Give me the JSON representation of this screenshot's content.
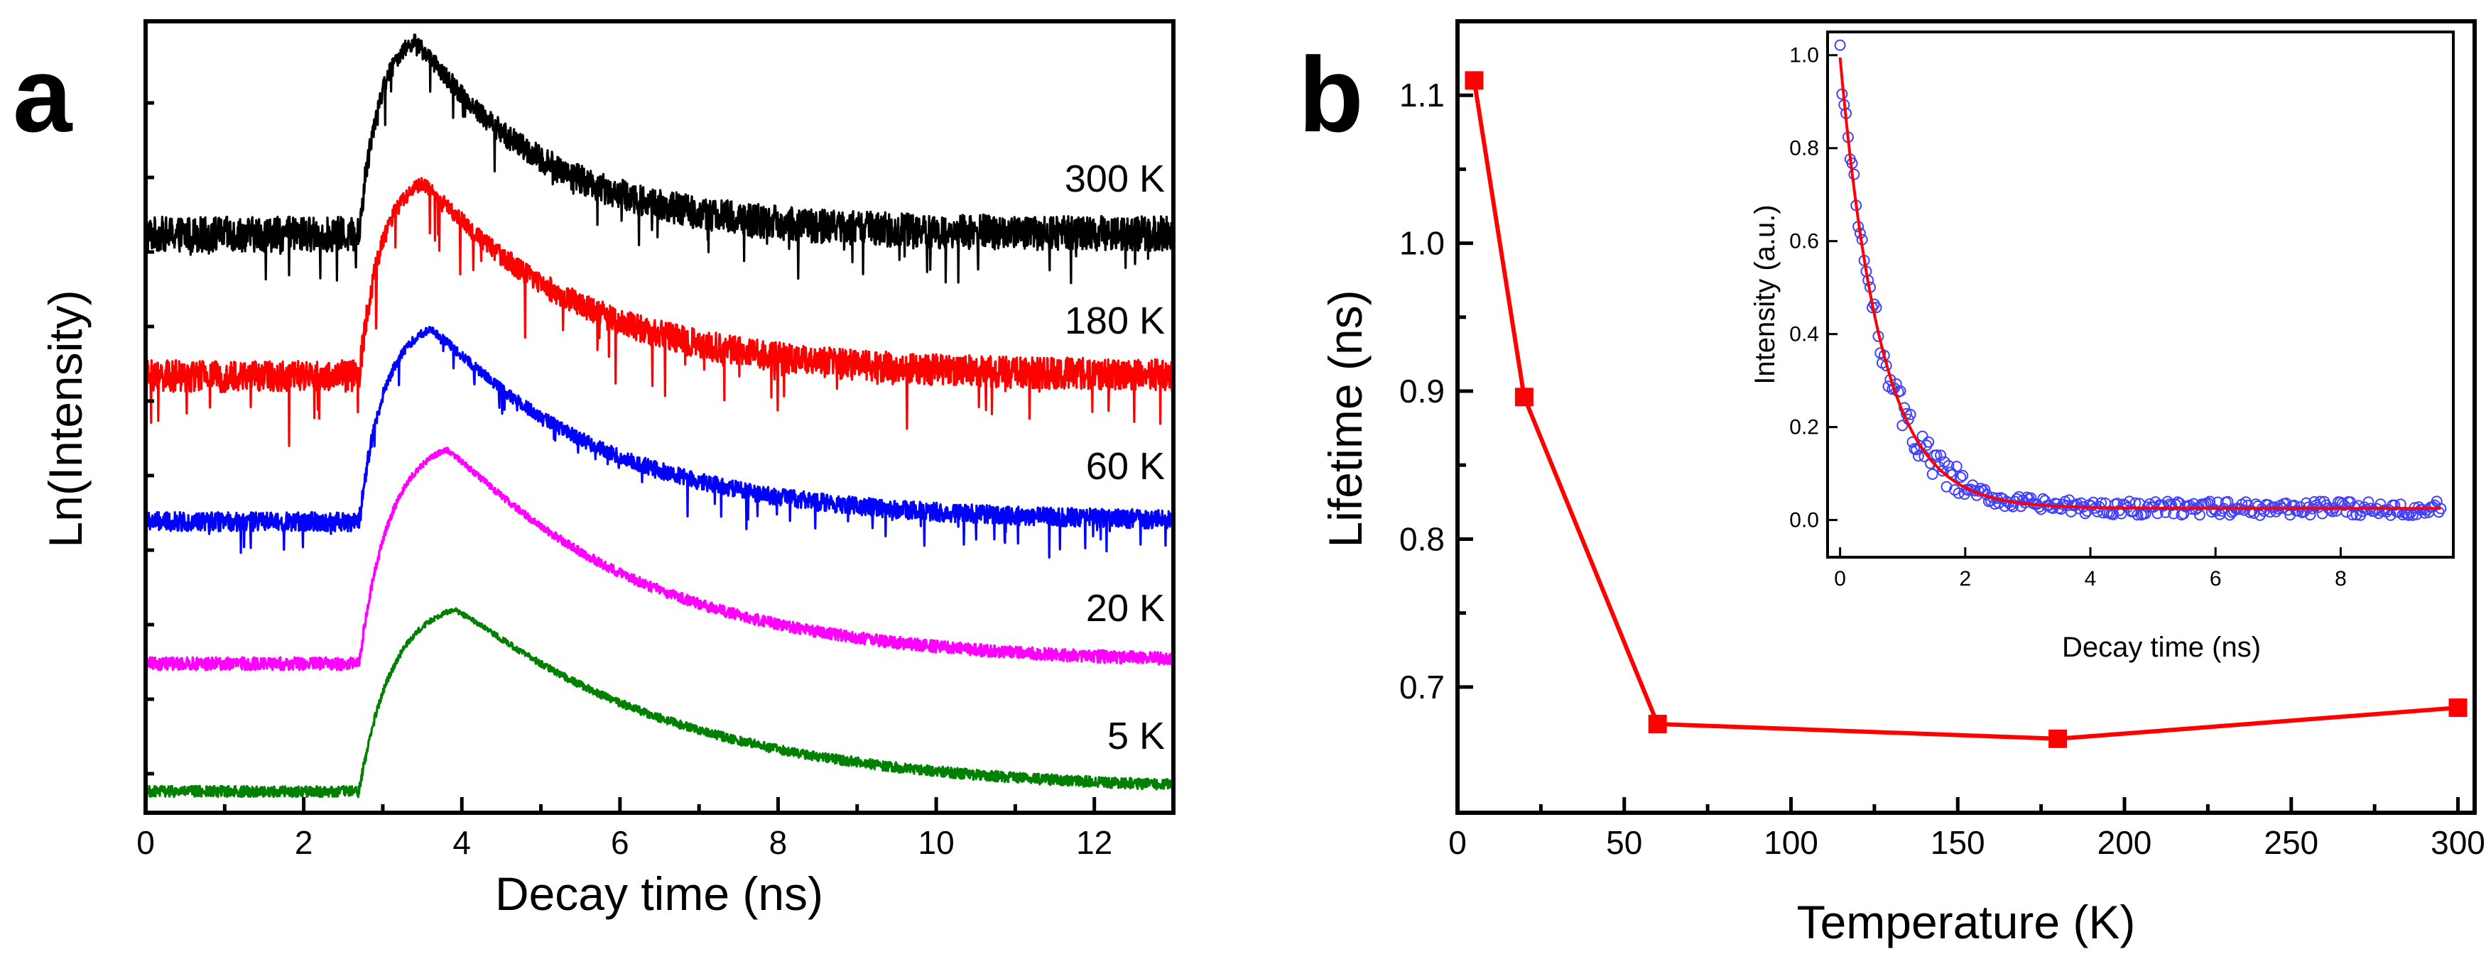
{
  "panels": {
    "a": {
      "letter": "a",
      "chart_data": {
        "type": "line",
        "title": "",
        "xlabel": "Decay time (ns)",
        "ylabel": "Ln(Intensity)",
        "xlim": [
          0,
          13
        ],
        "xticks": [
          "0",
          "2",
          "4",
          "6",
          "8",
          "10",
          "12"
        ],
        "y_ticks_labeled": false,
        "series": [
          {
            "name": "300 K",
            "label": "300 K",
            "color": "#000000",
            "baseline": 2.5,
            "peak_height": 0.9,
            "onset_ns": 2.7,
            "peak_ns": 3.4,
            "decay_tau_ns": 1.6,
            "noise": 0.22,
            "spikes": 0.55,
            "endlevel": 0.0
          },
          {
            "name": "180 K",
            "label": "180 K",
            "color": "#ff0000",
            "baseline": 2.5,
            "peak_height": 0.9,
            "onset_ns": 2.7,
            "peak_ns": 3.5,
            "decay_tau_ns": 1.9,
            "noise": 0.2,
            "spikes": 0.75,
            "endlevel": 0.0
          },
          {
            "name": "60 K",
            "label": "60 K",
            "color": "#0000ff",
            "baseline": 2.5,
            "peak_height": 0.9,
            "onset_ns": 2.7,
            "peak_ns": 3.6,
            "decay_tau_ns": 2.1,
            "noise": 0.12,
            "spikes": 0.42,
            "endlevel": 0.0
          },
          {
            "name": "20 K",
            "label": "20 K",
            "color": "#ff00ff",
            "baseline": 2.5,
            "peak_height": 1.0,
            "onset_ns": 2.7,
            "peak_ns": 3.8,
            "decay_tau_ns": 2.4,
            "noise": 0.08,
            "spikes": 0.0,
            "endlevel": 0.0
          },
          {
            "name": "5 K",
            "label": "5 K",
            "color": "#008000",
            "baseline": 2.5,
            "peak_height": 0.85,
            "onset_ns": 2.7,
            "peak_ns": 3.9,
            "decay_tau_ns": 2.7,
            "noise": 0.07,
            "spikes": 0.0,
            "endlevel": 0.0
          }
        ]
      }
    },
    "b": {
      "letter": "b",
      "chart_data": {
        "type": "line",
        "title": "",
        "xlabel": "Temperature (K)",
        "ylabel": "Lifetime (ns)",
        "xlim": [
          0,
          305
        ],
        "ylim": [
          0.615,
          1.15
        ],
        "xticks": [
          "0",
          "50",
          "100",
          "150",
          "200",
          "250",
          "300"
        ],
        "yticks": [
          "0.7",
          "0.8",
          "0.9",
          "1.0",
          "1.1"
        ],
        "color": "#ff0000",
        "marker": "square",
        "x": [
          5,
          20,
          60,
          180,
          300
        ],
        "y": [
          1.11,
          0.896,
          0.675,
          0.665,
          0.686
        ]
      },
      "inset": {
        "chart_data": {
          "type": "scatter",
          "title": "",
          "xlabel": "Decay time (ns)",
          "ylabel": "Intensity (a.u.)",
          "xlim": [
            -0.2,
            9.8
          ],
          "ylim": [
            -0.08,
            1.05
          ],
          "xticks": [
            "0",
            "2",
            "4",
            "6",
            "8"
          ],
          "yticks": [
            "0.0",
            "0.2",
            "0.4",
            "0.6",
            "0.8",
            "1.0"
          ],
          "data_color": "#4040ff",
          "fit_color": "#ff0000",
          "fit": {
            "model": "exponential",
            "amplitude": 0.97,
            "tau_ns": 0.65,
            "offset": 0.025
          },
          "data_range_ns": [
            0,
            9.6
          ],
          "data_points": 300
        }
      }
    }
  }
}
